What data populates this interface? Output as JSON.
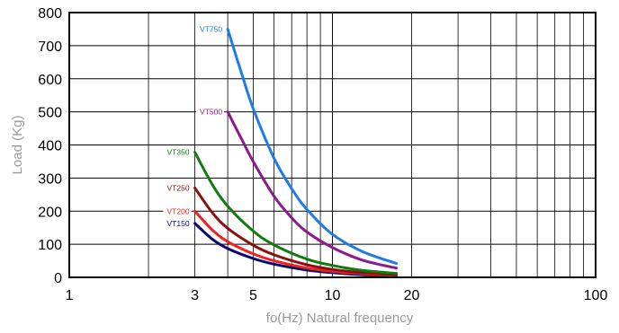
{
  "chart_data": {
    "type": "line",
    "xlabel": "fo(Hz) Natural frequency",
    "ylabel": "Load (Kg)",
    "xscale": "log",
    "xlim": [
      1,
      100
    ],
    "ylim": [
      0,
      800
    ],
    "grid": true,
    "x_tick_labels": [
      "1",
      "3",
      "5",
      "10",
      "20",
      "100"
    ],
    "x_tick_values": [
      1,
      3,
      5,
      10,
      20,
      100
    ],
    "y_tick_labels": [
      "0",
      "100",
      "200",
      "300",
      "400",
      "500",
      "600",
      "700",
      "800"
    ],
    "y_tick_values": [
      0,
      100,
      200,
      300,
      400,
      500,
      600,
      700,
      800
    ],
    "series": [
      {
        "name": "VT150",
        "color": "#0a0a6e",
        "x": [
          3.0,
          3.5,
          4.0,
          5.0,
          6.0,
          8.0,
          10.0,
          13.0,
          17.5
        ],
        "y": [
          163,
          115,
          87,
          57,
          40,
          22,
          14,
          8,
          5
        ]
      },
      {
        "name": "VT200",
        "color": "#ee2222",
        "x": [
          3.0,
          3.5,
          4.0,
          5.0,
          6.0,
          8.0,
          10.0,
          13.0,
          17.5
        ],
        "y": [
          200,
          143,
          108,
          71,
          50,
          28,
          18,
          11,
          6
        ]
      },
      {
        "name": "VT250",
        "color": "#8b1010",
        "x": [
          3.0,
          3.5,
          4.0,
          5.0,
          6.0,
          8.0,
          10.0,
          13.0,
          17.5
        ],
        "y": [
          270,
          195,
          148,
          97,
          68,
          38,
          24,
          14,
          8
        ]
      },
      {
        "name": "VT350",
        "color": "#117a11",
        "x": [
          3.0,
          3.5,
          4.0,
          5.0,
          6.0,
          8.0,
          10.0,
          13.0,
          17.5
        ],
        "y": [
          378,
          280,
          215,
          140,
          98,
          55,
          36,
          21,
          12
        ]
      },
      {
        "name": "VT500",
        "color": "#8b1a8b",
        "x": [
          4.0,
          4.5,
          5.0,
          6.0,
          7.0,
          8.0,
          10.0,
          13.0,
          17.5
        ],
        "y": [
          500,
          420,
          350,
          245,
          180,
          137,
          90,
          52,
          28
        ]
      },
      {
        "name": "VT750",
        "color": "#1e7be8",
        "x": [
          4.0,
          4.5,
          5.0,
          6.0,
          7.0,
          8.0,
          10.0,
          13.0,
          17.5
        ],
        "y": [
          750,
          620,
          510,
          360,
          268,
          205,
          130,
          78,
          42
        ]
      }
    ]
  }
}
